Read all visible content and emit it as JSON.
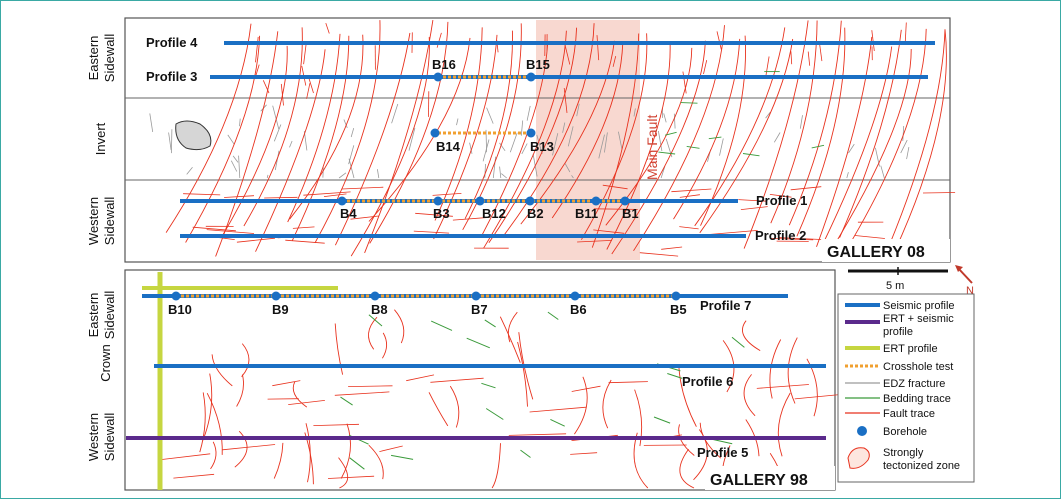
{
  "gallery08": {
    "title": "GALLERY 08",
    "sections": {
      "eastern": "Eastern Sidewall",
      "invert": "Invert",
      "western": "Western Sidewall"
    },
    "fault_label": "Main Fault",
    "profiles": {
      "p4": "Profile 4",
      "p3": "Profile 3",
      "p1": "Profile 1",
      "p2": "Profile 2"
    },
    "boreholes": {
      "b16": "B16",
      "b15": "B15",
      "b14": "B14",
      "b13": "B13",
      "b4": "B4",
      "b3": "B3",
      "b12": "B12",
      "b2": "B2",
      "b11": "B11",
      "b1": "B1"
    }
  },
  "gallery98": {
    "title": "GALLERY 98",
    "sections": {
      "eastern": "Eastern Sidewall",
      "crown": "Crown",
      "western": "Western Sidewall"
    },
    "profiles": {
      "p7": "Profile 7",
      "p6": "Profile 6",
      "p5": "Profile 5"
    },
    "boreholes": {
      "b10": "B10",
      "b9": "B9",
      "b8": "B8",
      "b7": "B7",
      "b6": "B6",
      "b5": "B5"
    }
  },
  "scale_bar": {
    "label": "5 m",
    "north": "N"
  },
  "legend": {
    "seismic": "Seismic profile",
    "ert_seismic_line1": "ERT + seismic",
    "ert_seismic_line2": "profile",
    "ert": "ERT profile",
    "crosshole": "Crosshole test",
    "edz": "EDZ fracture",
    "bedding": "Bedding trace",
    "fault": "Fault trace",
    "borehole": "Borehole",
    "zone_line1": "Strongly",
    "zone_line2": "tectonized zone"
  },
  "colors": {
    "seismic": "#1a6fc4",
    "ert_seismic": "#5b2a8c",
    "ert": "#c6d640",
    "crosshole": "#f0a030",
    "fault": "#e8321e",
    "bedding": "#3a9a3a",
    "edz": "#9a9a9a",
    "fault_zone": "#f8d8d0",
    "frame": "#3aa9a4"
  }
}
